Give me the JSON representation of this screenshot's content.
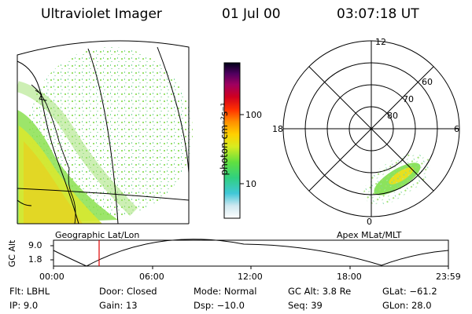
{
  "header": {
    "instrument": "Ultraviolet Imager",
    "date": "01 Jul 00",
    "time": "03:07:18 UT"
  },
  "colorbar": {
    "unit_label": "photon cm⁻²s⁻¹",
    "ticks": [
      "100",
      "10"
    ],
    "scale": "log"
  },
  "geo_panel": {
    "label": "Geographic Lat/Lon"
  },
  "polar_panel": {
    "label": "Apex MLat/MLT",
    "mlt_labels": {
      "top": "12",
      "left": "18",
      "right": "6",
      "bottom": "0"
    },
    "lat_labels": [
      "60",
      "70",
      "80"
    ]
  },
  "altitude_plot": {
    "ylabel": "GC Alt",
    "yticks": [
      "9.0",
      "1.8"
    ],
    "xticks": [
      "00:00",
      "06:00",
      "12:00",
      "18:00",
      "23:59"
    ],
    "current_time_marker": "03:07"
  },
  "info": {
    "flt": "Flt: LBHL",
    "ip": "IP:  9.0",
    "door": "Door: Closed",
    "gain": "Gain: 13",
    "mode": "Mode: Normal",
    "dsp": "Dsp:  −10.0",
    "gcalt": "GC Alt: 3.8 Re",
    "seq": "Seq: 39",
    "glat": "GLat: −61.2",
    "glon": "GLon: 28.0"
  },
  "colors": {
    "marker": "#e00000",
    "aurora_green": "#7ee04a",
    "aurora_yellow": "#e6e020",
    "speckle": "#9be06a"
  }
}
